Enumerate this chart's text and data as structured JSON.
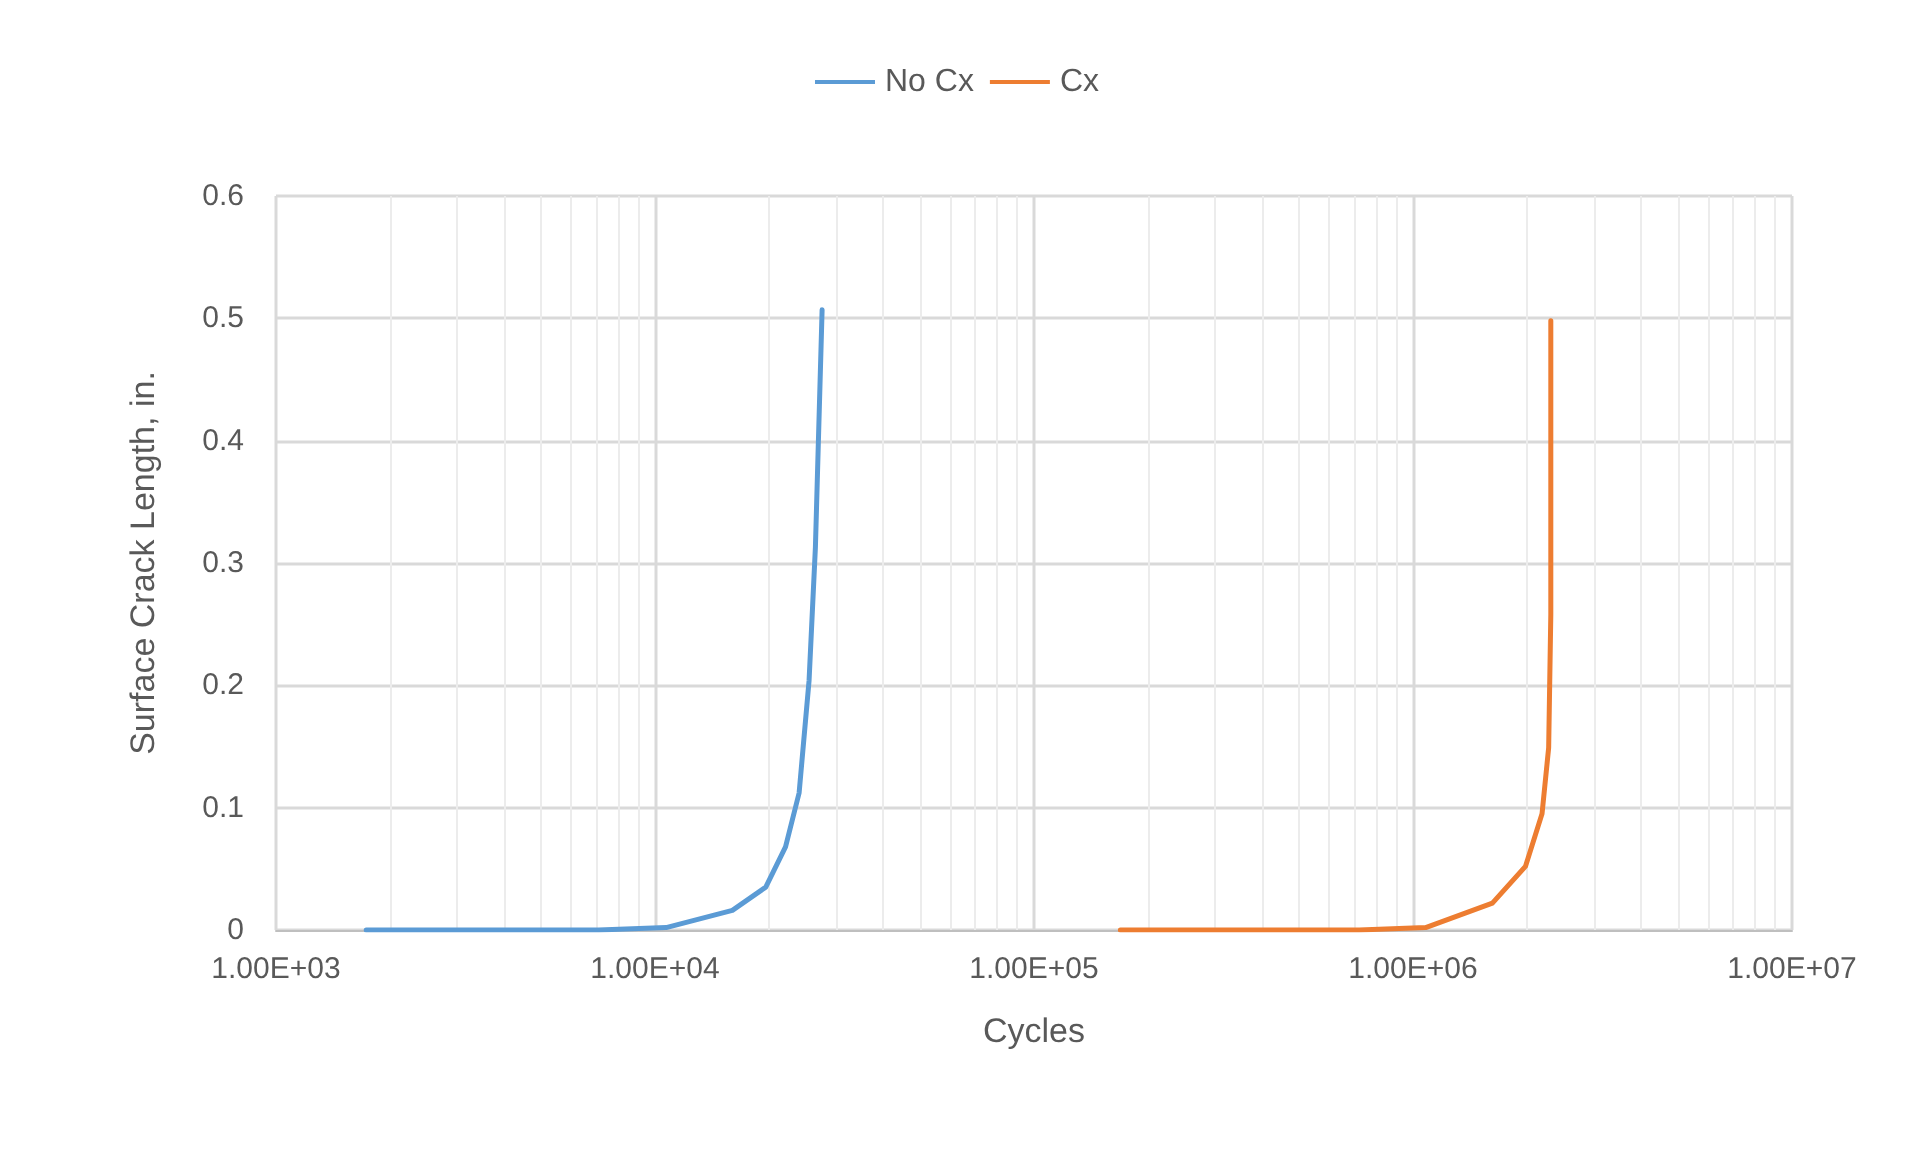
{
  "chart_data": {
    "type": "line",
    "xlabel": "Cycles",
    "ylabel": "Surface Crack Length, in.",
    "log": "x",
    "grid": true,
    "legend": "top",
    "marker": "none",
    "line_style": "solid",
    "xlim": [
      1000,
      10000000
    ],
    "xticks": [
      {
        "value": 1000,
        "label": "1.00E+03"
      },
      {
        "value": 10000,
        "label": "1.00E+04"
      },
      {
        "value": 100000,
        "label": "1.00E+05"
      },
      {
        "value": 1000000,
        "label": "1.00E+06"
      },
      {
        "value": 10000000,
        "label": "1.00E+07"
      }
    ],
    "ylim": [
      0,
      0.6
    ],
    "yticks": [
      0,
      0.1,
      0.2,
      0.3,
      0.4,
      0.5,
      0.6
    ],
    "series": [
      {
        "name": "No Cx",
        "color": "#5b9bd5",
        "x": [
          1730,
          4000,
          7100,
          10700,
          16000,
          19600,
          22100,
          24000,
          25500,
          26500,
          27600
        ],
        "values": [
          0,
          0,
          0,
          0.002,
          0.016,
          0.035,
          0.068,
          0.112,
          0.204,
          0.313,
          0.507
        ]
      },
      {
        "name": "Cx",
        "color": "#ed7d31",
        "x": [
          169000,
          400000,
          721000,
          1080000,
          1620000,
          1980000,
          2190000,
          2280000,
          2310000,
          2310000
        ],
        "values": [
          0,
          0,
          0,
          0.002,
          0.022,
          0.052,
          0.095,
          0.149,
          0.258,
          0.498
        ]
      }
    ]
  }
}
